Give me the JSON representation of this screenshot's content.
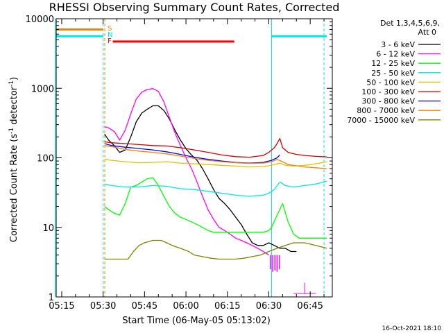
{
  "chart_data": {
    "type": "line",
    "title": "RHESSI Observing Summary Count Rates, Corrected",
    "xlabel": "Start Time (06-May-05 05:13:02)",
    "ylabel_main": "Corrected Count Rate (s",
    "ylabel_exp1": "-1",
    "ylabel_mid": " detector",
    "ylabel_exp2": "-1",
    "ylabel_end": ")",
    "yscale": "log",
    "ylim": [
      1,
      10000
    ],
    "xlim_minutes": [
      0,
      100
    ],
    "xticks": [
      {
        "label": "05:15",
        "t": 2
      },
      {
        "label": "05:30",
        "t": 17
      },
      {
        "label": "05:45",
        "t": 32
      },
      {
        "label": "06:00",
        "t": 47
      },
      {
        "label": "06:15",
        "t": 62
      },
      {
        "label": "06:30",
        "t": 77
      },
      {
        "label": "06:45",
        "t": 92
      }
    ],
    "yticks": [
      {
        "label": "1",
        "v": 1
      },
      {
        "label": "10",
        "v": 10
      },
      {
        "label": "100",
        "v": 100
      },
      {
        "label": "1000",
        "v": 1000
      },
      {
        "label": "10000",
        "v": 10000
      }
    ],
    "legend_header_1": "Det 1,3,4,5,6,9,",
    "legend_header_2": "Att 0",
    "flags": [
      {
        "label": "S",
        "color": "#ff8000"
      },
      {
        "label": "N",
        "color": "#00e5e5"
      },
      {
        "label": "F",
        "color": "#ff0000"
      }
    ],
    "timestamp": "16-Oct-2021 18:10",
    "series": [
      {
        "name": "3 - 6 keV",
        "color": "#000000",
        "x": [
          17.5,
          19,
          21,
          23,
          25,
          27,
          29,
          31,
          33,
          35,
          37,
          39,
          41,
          43,
          45,
          47,
          49,
          51,
          53,
          55,
          57,
          59,
          61,
          63,
          65,
          67,
          69,
          71,
          73,
          75,
          77,
          79,
          81,
          83,
          85,
          87
        ],
        "values": [
          220,
          180,
          150,
          120,
          130,
          200,
          330,
          440,
          500,
          560,
          560,
          480,
          360,
          250,
          180,
          135,
          110,
          92,
          70,
          50,
          35,
          26,
          22,
          18,
          14,
          11,
          8,
          6,
          5.5,
          5.5,
          6,
          5.5,
          5,
          5,
          4.5,
          4.5
        ]
      },
      {
        "name": "6 - 12 keV",
        "color": "#ff00ff",
        "x": [
          17.5,
          19,
          21,
          23,
          25,
          27,
          29,
          31,
          33,
          35,
          37,
          39,
          41,
          43,
          45,
          47,
          49,
          51,
          53,
          55,
          57,
          59,
          61,
          63,
          65,
          67,
          69,
          71,
          73,
          75,
          77
        ],
        "values": [
          280,
          270,
          240,
          180,
          250,
          430,
          700,
          880,
          960,
          990,
          900,
          640,
          380,
          230,
          150,
          100,
          70,
          45,
          28,
          18,
          13,
          10,
          9,
          8,
          7,
          6.5,
          6,
          5.5,
          5,
          4.5,
          4
        ]
      },
      {
        "name": "12 - 25 keV",
        "color": "#00ff00",
        "x": [
          17.5,
          19,
          21,
          23,
          25,
          27,
          29,
          31,
          33,
          35,
          37,
          39,
          41,
          43,
          45,
          47,
          49,
          51,
          53,
          55,
          57,
          59,
          61,
          63,
          65,
          67,
          69,
          71,
          73,
          75,
          77,
          78,
          80,
          82,
          84,
          86,
          88,
          90,
          92,
          94,
          96,
          98
        ],
        "values": [
          20,
          18,
          16,
          15,
          22,
          38,
          40,
          45,
          50,
          52,
          40,
          28,
          20,
          16,
          14,
          13,
          12,
          11,
          10,
          9,
          8.5,
          8.5,
          8.5,
          8.5,
          8.5,
          8.5,
          8.5,
          8.5,
          8.5,
          8.5,
          9,
          10,
          15,
          22,
          12,
          8,
          7,
          7,
          7,
          7,
          7,
          7
        ]
      },
      {
        "name": "25 - 50 keV",
        "color": "#00e5e5",
        "x": [
          17.5,
          20,
          25,
          30,
          35,
          40,
          45,
          50,
          55,
          60,
          65,
          70,
          75,
          77,
          79,
          81,
          83,
          86,
          90,
          94,
          98
        ],
        "values": [
          42,
          40,
          38,
          38,
          40,
          39,
          36,
          35,
          33,
          31,
          29,
          28,
          29,
          31,
          35,
          45,
          40,
          38,
          40,
          42,
          46
        ]
      },
      {
        "name": "50 - 100 keV",
        "color": "#e0c000",
        "x": [
          17.5,
          20,
          25,
          30,
          35,
          40,
          45,
          50,
          55,
          60,
          65,
          70,
          75,
          77,
          79,
          81,
          83,
          86,
          90,
          94,
          98
        ],
        "values": [
          95,
          92,
          88,
          85,
          86,
          88,
          84,
          82,
          80,
          78,
          76,
          74,
          75,
          77,
          80,
          84,
          78,
          76,
          78,
          82,
          88
        ]
      },
      {
        "name": "100 - 300 keV",
        "color": "#cc0000",
        "x": [
          17.5,
          20,
          25,
          30,
          35,
          40,
          45,
          50,
          55,
          60,
          65,
          70,
          75,
          77,
          79,
          80,
          81,
          82,
          84,
          87,
          90,
          94,
          98
        ],
        "values": [
          170,
          165,
          160,
          155,
          150,
          148,
          140,
          130,
          120,
          110,
          104,
          102,
          108,
          120,
          140,
          160,
          190,
          140,
          120,
          112,
          108,
          105,
          103
        ]
      },
      {
        "name": "300 - 800 keV",
        "color": "#0000ff",
        "x": [
          17.5,
          20,
          25,
          30,
          35,
          40,
          45,
          50,
          55,
          60,
          65,
          70,
          75,
          78,
          80,
          81
        ],
        "values": [
          160,
          150,
          142,
          136,
          130,
          122,
          112,
          102,
          95,
          90,
          86,
          84,
          86,
          92,
          100,
          110
        ]
      },
      {
        "name": "800 - 7000 keV",
        "color": "#ff8000",
        "x": [
          17.5,
          20,
          25,
          30,
          35,
          40,
          45,
          50,
          55,
          60,
          65,
          70,
          75,
          78,
          80,
          82,
          84,
          87,
          90,
          94,
          98
        ],
        "values": [
          150,
          145,
          132,
          125,
          120,
          114,
          106,
          98,
          92,
          88,
          85,
          83,
          84,
          88,
          95,
          88,
          80,
          77,
          74,
          72,
          70
        ]
      },
      {
        "name": "7000 - 15000 keV",
        "color": "#808000",
        "x": [
          17.5,
          20,
          23,
          26,
          28,
          30,
          32,
          35,
          38,
          40,
          42,
          45,
          48,
          50,
          53,
          56,
          59,
          62,
          65,
          68,
          71,
          74,
          77,
          80,
          83,
          86,
          90,
          94,
          98
        ],
        "values": [
          3.5,
          3.5,
          3.5,
          3.5,
          4.5,
          5.5,
          6,
          6.5,
          6.5,
          6,
          5.5,
          5,
          4.5,
          4,
          3.8,
          3.6,
          3.5,
          3.5,
          3.5,
          3.6,
          3.8,
          4,
          4.5,
          5,
          5.5,
          6,
          6,
          5.5,
          5
        ]
      }
    ]
  }
}
